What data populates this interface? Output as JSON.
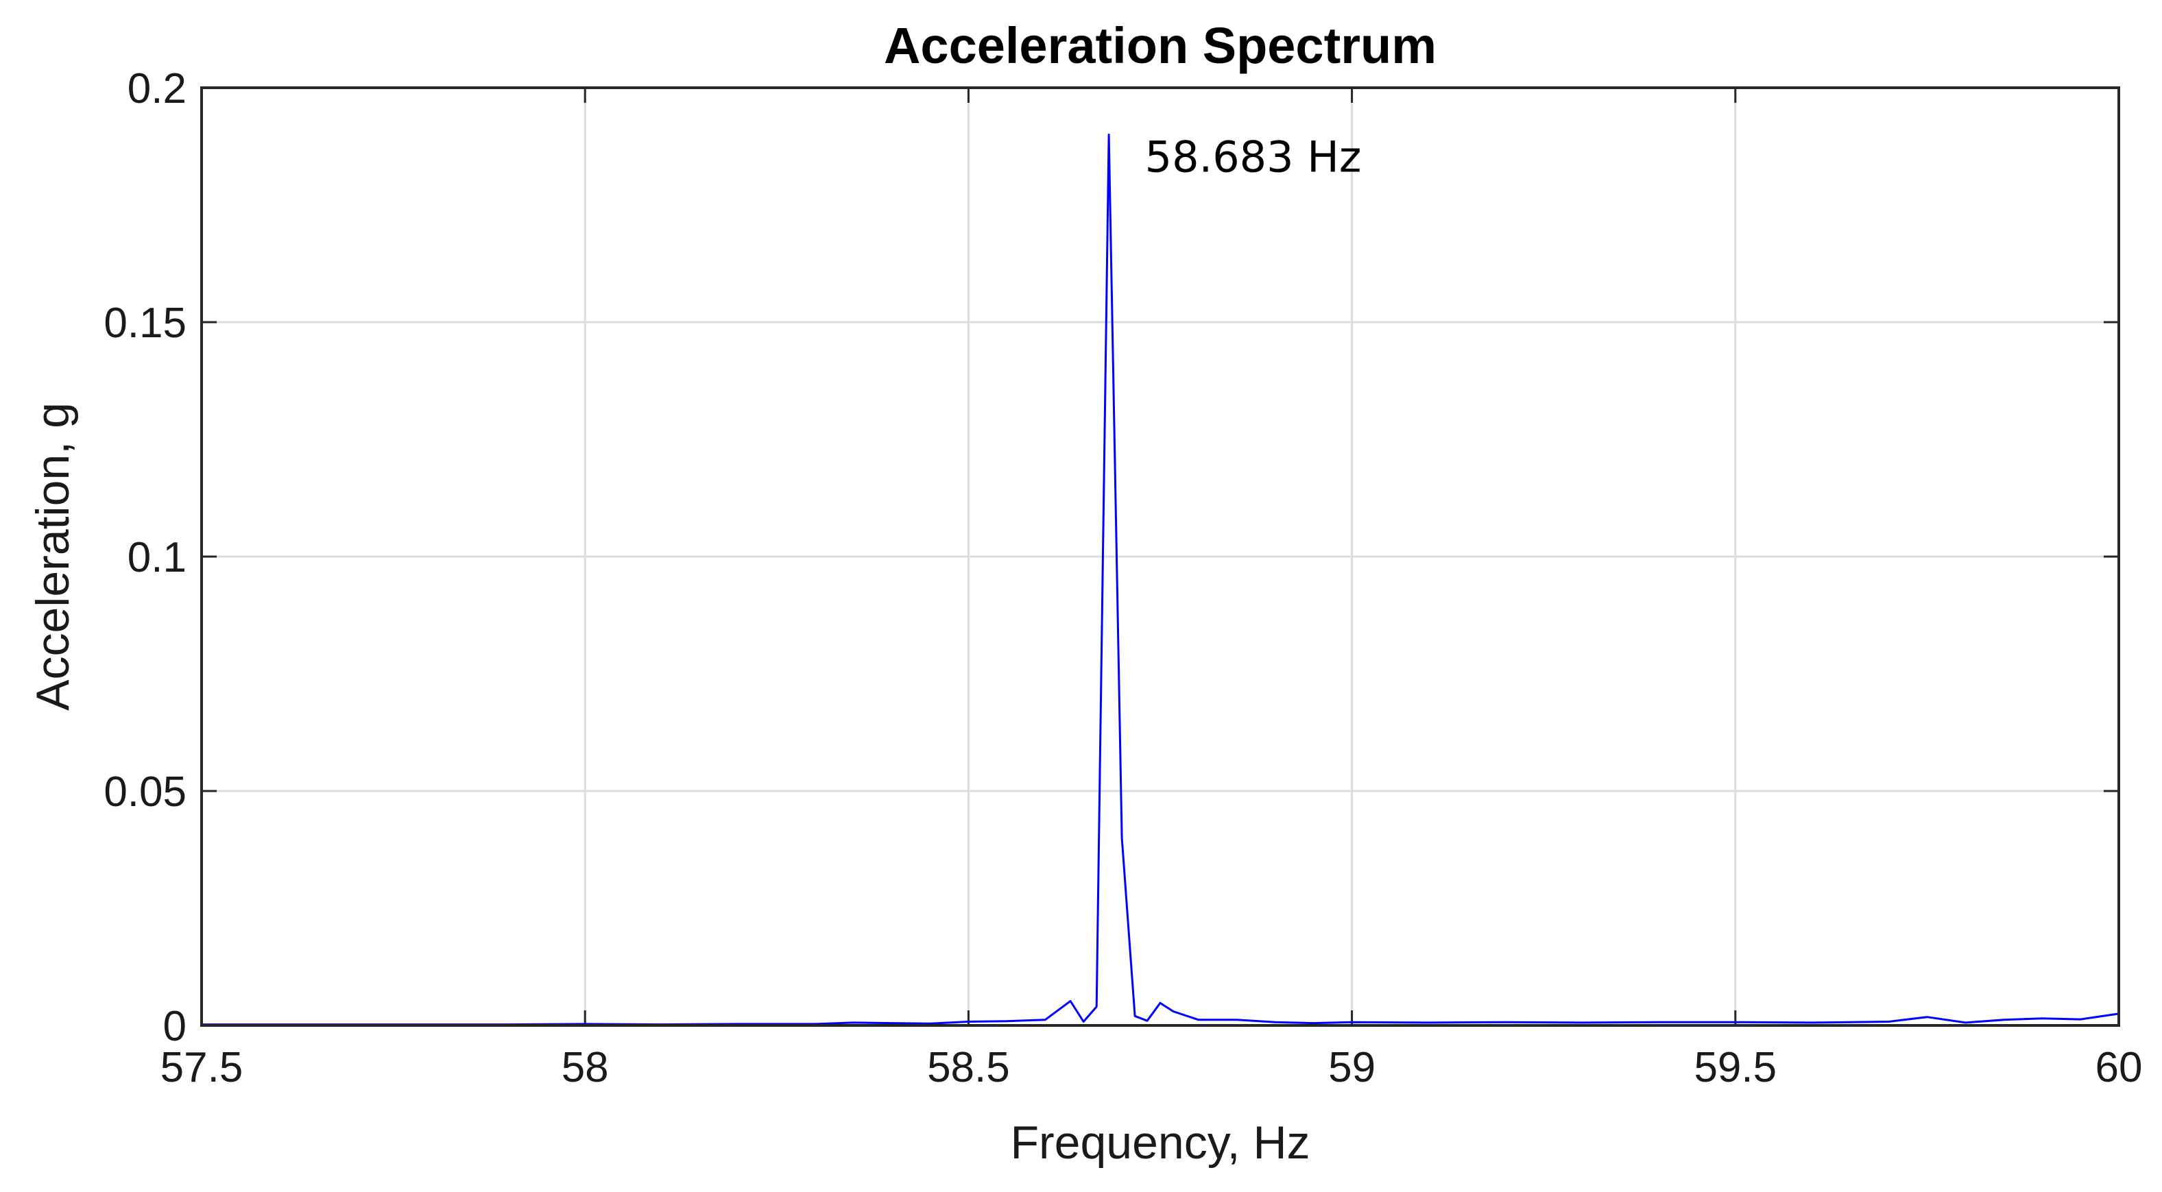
{
  "chart_data": {
    "type": "line",
    "title": "Acceleration Spectrum",
    "xlabel": "Frequency, Hz",
    "ylabel": "Acceleration, g",
    "xlim": [
      57.5,
      60
    ],
    "ylim": [
      0,
      0.2
    ],
    "x_ticks": [
      57.5,
      58,
      58.5,
      59,
      59.5,
      60
    ],
    "x_tick_labels": [
      "57.5",
      "58",
      "58.5",
      "59",
      "59.5",
      "60"
    ],
    "y_ticks": [
      0,
      0.05,
      0.1,
      0.15,
      0.2
    ],
    "y_tick_labels": [
      "0",
      "0.05",
      "0.1",
      "0.15",
      "0.2"
    ],
    "grid": true,
    "series_color": "#0000ff",
    "series": [
      {
        "x": [
          57.5,
          57.6,
          57.7,
          57.8,
          57.9,
          58.0,
          58.1,
          58.2,
          58.3,
          58.35,
          58.4,
          58.45,
          58.5,
          58.55,
          58.6,
          58.633,
          58.65,
          58.667,
          58.683,
          58.7,
          58.717,
          58.733,
          58.75,
          58.767,
          58.8,
          58.85,
          58.9,
          58.95,
          59.0,
          59.1,
          59.2,
          59.3,
          59.4,
          59.5,
          59.6,
          59.7,
          59.75,
          59.8,
          59.85,
          59.9,
          59.95,
          60.0
        ],
        "y": [
          0.0002,
          0.0002,
          0.0002,
          0.0002,
          0.0002,
          0.0003,
          0.0002,
          0.0003,
          0.0003,
          0.0006,
          0.0005,
          0.0004,
          0.0008,
          0.0009,
          0.0012,
          0.0052,
          0.0008,
          0.004,
          0.19,
          0.04,
          0.002,
          0.001,
          0.0048,
          0.003,
          0.0012,
          0.0012,
          0.0007,
          0.0005,
          0.0007,
          0.0006,
          0.0007,
          0.0006,
          0.0007,
          0.0007,
          0.0006,
          0.0008,
          0.0018,
          0.0006,
          0.0012,
          0.0015,
          0.0013,
          0.0025
        ]
      }
    ],
    "annotations": [
      {
        "text": "58.683 Hz",
        "x": 58.73,
        "y": 0.185
      }
    ]
  }
}
